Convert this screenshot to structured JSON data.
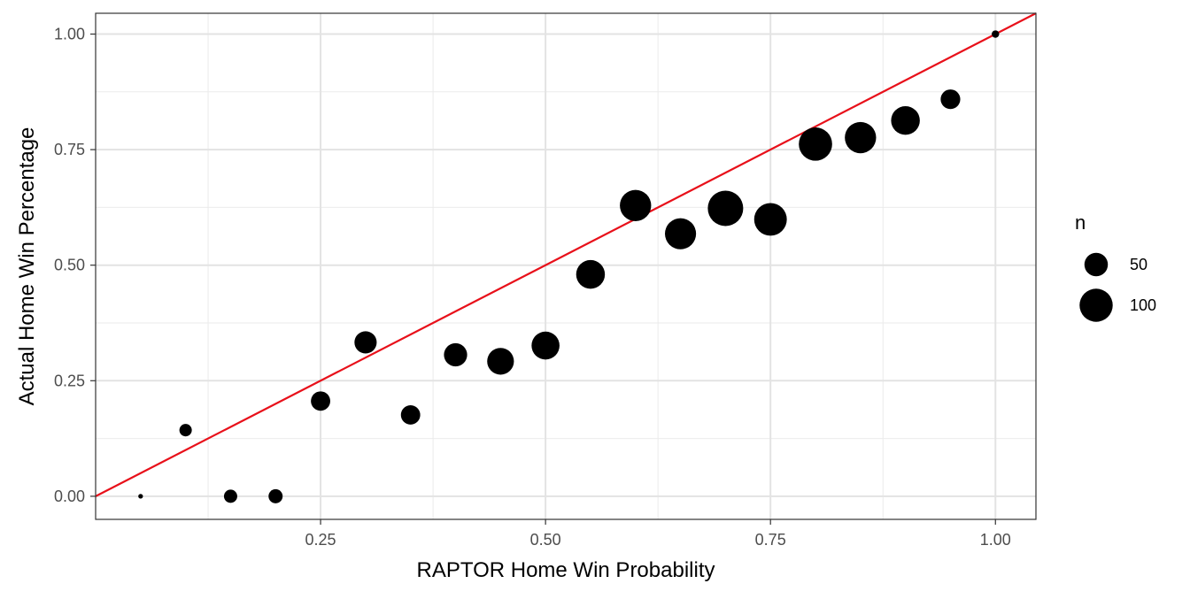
{
  "chart_data": {
    "type": "scatter",
    "xlabel": "RAPTOR Home Win Probability",
    "ylabel": "Actual Home Win Percentage",
    "xlim": [
      0.0,
      1.045
    ],
    "ylim": [
      -0.05,
      1.045
    ],
    "x_ticks": [
      {
        "value": 0.25,
        "label": "0.25"
      },
      {
        "value": 0.5,
        "label": "0.50"
      },
      {
        "value": 0.75,
        "label": "0.75"
      },
      {
        "value": 1.0,
        "label": "1.00"
      }
    ],
    "y_ticks": [
      {
        "value": 0.0,
        "label": "0.00"
      },
      {
        "value": 0.25,
        "label": "0.25"
      },
      {
        "value": 0.5,
        "label": "0.50"
      },
      {
        "value": 0.75,
        "label": "0.75"
      },
      {
        "value": 1.0,
        "label": "1.00"
      }
    ],
    "x_minor": [
      0.125,
      0.375,
      0.625,
      0.875
    ],
    "y_minor": [
      0.125,
      0.375,
      0.625,
      0.875
    ],
    "grid": true,
    "reference_line": {
      "type": "identity",
      "slope": 1,
      "intercept": 0,
      "color": "#e8101a"
    },
    "points": [
      {
        "x": 0.05,
        "y": 0.0,
        "n": 2
      },
      {
        "x": 0.1,
        "y": 0.143,
        "n": 14
      },
      {
        "x": 0.15,
        "y": 0.0,
        "n": 16
      },
      {
        "x": 0.2,
        "y": 0.0,
        "n": 18
      },
      {
        "x": 0.25,
        "y": 0.206,
        "n": 34
      },
      {
        "x": 0.3,
        "y": 0.333,
        "n": 45
      },
      {
        "x": 0.35,
        "y": 0.176,
        "n": 34
      },
      {
        "x": 0.4,
        "y": 0.306,
        "n": 49
      },
      {
        "x": 0.45,
        "y": 0.292,
        "n": 65
      },
      {
        "x": 0.5,
        "y": 0.326,
        "n": 71
      },
      {
        "x": 0.55,
        "y": 0.48,
        "n": 75
      },
      {
        "x": 0.6,
        "y": 0.629,
        "n": 89
      },
      {
        "x": 0.65,
        "y": 0.568,
        "n": 88
      },
      {
        "x": 0.7,
        "y": 0.623,
        "n": 114
      },
      {
        "x": 0.75,
        "y": 0.599,
        "n": 97
      },
      {
        "x": 0.8,
        "y": 0.762,
        "n": 101
      },
      {
        "x": 0.85,
        "y": 0.776,
        "n": 89
      },
      {
        "x": 0.9,
        "y": 0.813,
        "n": 75
      },
      {
        "x": 0.95,
        "y": 0.859,
        "n": 35
      },
      {
        "x": 1.0,
        "y": 1.0,
        "n": 5
      }
    ],
    "size_scale": {
      "max_n": 114
    },
    "point_color": "#000000",
    "legend": {
      "title": "n",
      "position": "right",
      "entries": [
        {
          "n": 50,
          "label": "50"
        },
        {
          "n": 100,
          "label": "100"
        }
      ]
    }
  }
}
